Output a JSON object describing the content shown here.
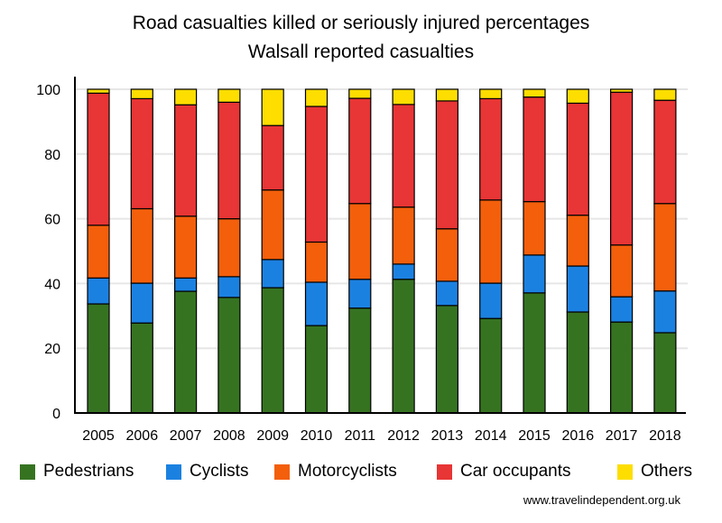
{
  "chart_data": {
    "type": "bar",
    "stacked": true,
    "title": "Road casualties killed or seriously injured percentages",
    "subtitle": "Walsall reported casualties",
    "xlabel": "",
    "ylabel": "",
    "ylim": [
      0,
      100
    ],
    "yticks": [
      0,
      20,
      40,
      60,
      80,
      100
    ],
    "grid": true,
    "legend_position": "bottom",
    "categories": [
      "2005",
      "2006",
      "2007",
      "2008",
      "2009",
      "2010",
      "2011",
      "2012",
      "2013",
      "2014",
      "2015",
      "2016",
      "2017",
      "2018"
    ],
    "series": [
      {
        "name": "Pedestrians",
        "color": "#367321",
        "values": [
          33.7,
          27.8,
          37.6,
          35.7,
          38.7,
          27.0,
          32.4,
          41.3,
          33.2,
          29.2,
          37.1,
          31.2,
          28.1,
          24.8
        ]
      },
      {
        "name": "Cyclists",
        "color": "#1B81E1",
        "values": [
          8.0,
          12.3,
          4.1,
          6.4,
          8.7,
          13.4,
          8.9,
          4.7,
          7.5,
          10.9,
          11.7,
          14.2,
          7.8,
          12.9
        ]
      },
      {
        "name": "Motorcyclists",
        "color": "#F35F0B",
        "values": [
          16.3,
          23.0,
          19.1,
          17.9,
          21.5,
          12.4,
          23.4,
          17.6,
          16.2,
          25.7,
          16.5,
          15.7,
          16.0,
          27.0
        ]
      },
      {
        "name": "Car occupants",
        "color": "#E83535",
        "values": [
          40.8,
          34.0,
          34.4,
          36.0,
          19.9,
          41.9,
          32.5,
          31.7,
          39.5,
          31.3,
          32.3,
          34.6,
          47.2,
          31.9
        ]
      },
      {
        "name": "Others",
        "color": "#FDDE00",
        "values": [
          1.2,
          2.9,
          4.8,
          4.0,
          11.2,
          5.3,
          2.8,
          4.7,
          3.6,
          2.9,
          2.4,
          4.3,
          0.9,
          3.4
        ]
      }
    ]
  },
  "footer": "www.travelindependent.org.uk"
}
